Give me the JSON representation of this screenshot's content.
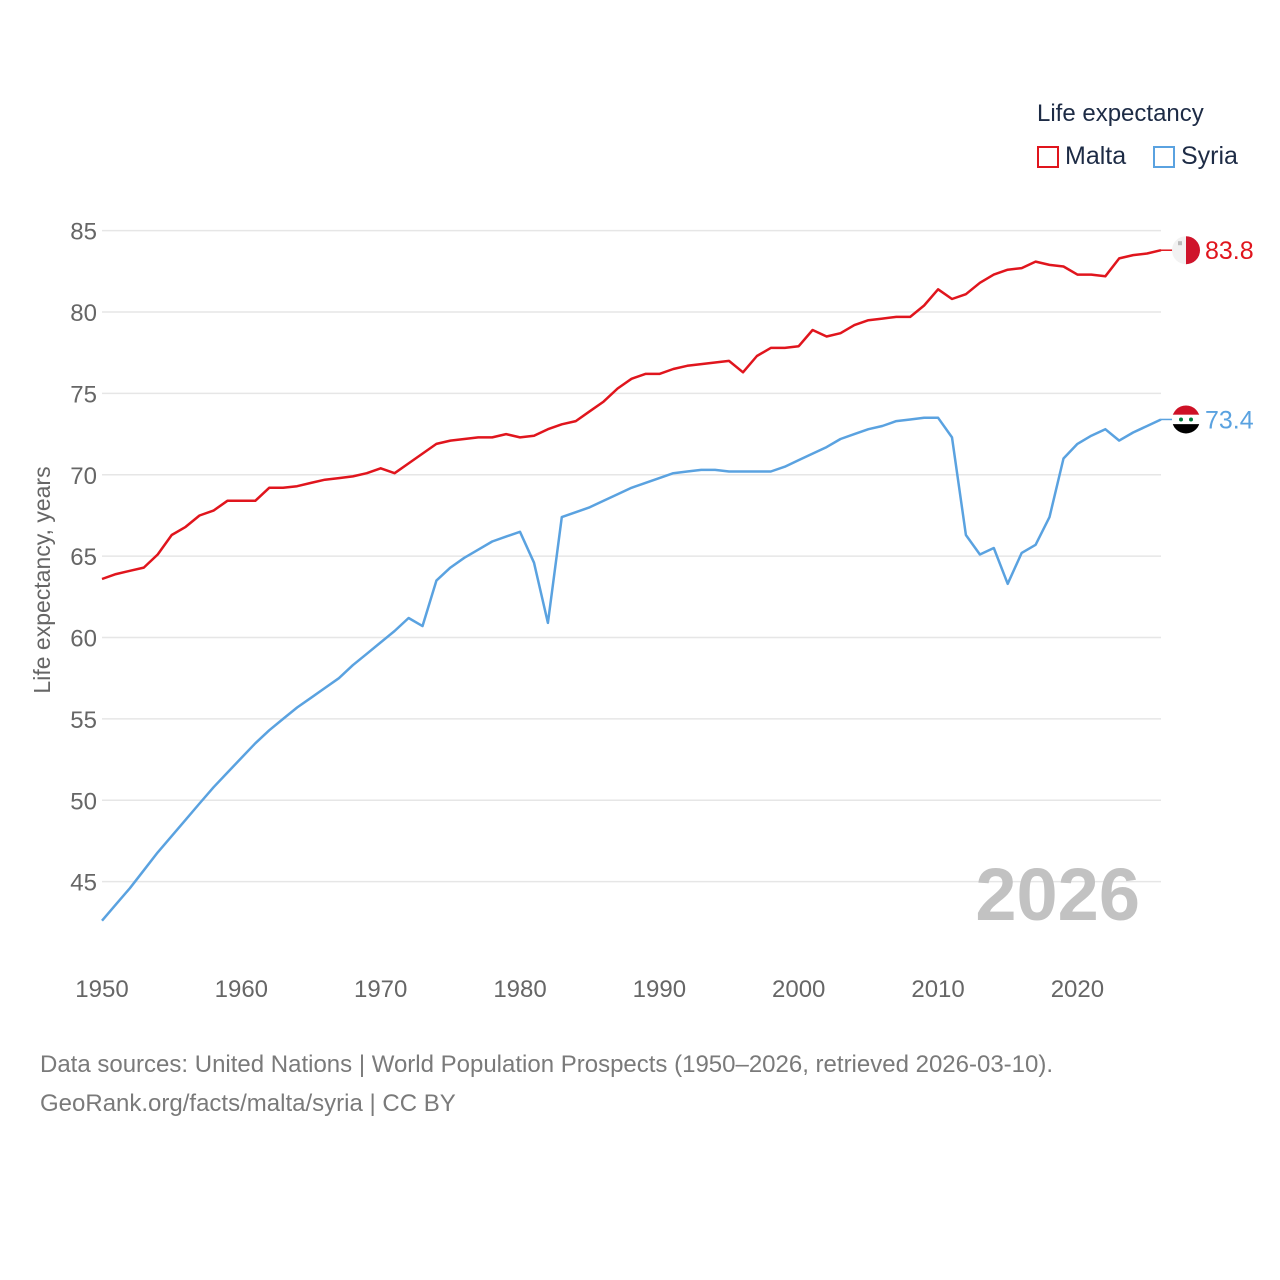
{
  "chart_data": {
    "type": "line",
    "title": "Life expectancy",
    "ylabel": "Life expectancy, years",
    "xlabel": "",
    "xlim": [
      1950,
      2026
    ],
    "ylim": [
      40.8,
      87.5
    ],
    "x_ticks": [
      1950,
      1960,
      1970,
      1980,
      1990,
      2000,
      2010,
      2020
    ],
    "y_ticks": [
      45,
      50,
      55,
      60,
      65,
      70,
      75,
      80,
      85
    ],
    "grid": true,
    "year_label": "2026",
    "series": [
      {
        "name": "Malta",
        "color": "#e0151d",
        "end_label": "83.8",
        "x": [
          1950,
          1951,
          1952,
          1953,
          1954,
          1955,
          1956,
          1957,
          1958,
          1959,
          1960,
          1961,
          1962,
          1963,
          1964,
          1965,
          1966,
          1967,
          1968,
          1969,
          1970,
          1971,
          1972,
          1973,
          1974,
          1975,
          1976,
          1977,
          1978,
          1979,
          1980,
          1981,
          1982,
          1983,
          1984,
          1985,
          1986,
          1987,
          1988,
          1989,
          1990,
          1991,
          1992,
          1993,
          1994,
          1995,
          1996,
          1997,
          1998,
          1999,
          2000,
          2001,
          2002,
          2003,
          2004,
          2005,
          2006,
          2007,
          2008,
          2009,
          2010,
          2011,
          2012,
          2013,
          2014,
          2015,
          2016,
          2017,
          2018,
          2019,
          2020,
          2021,
          2022,
          2023,
          2024,
          2025,
          2026
        ],
        "values": [
          63.6,
          63.9,
          64.1,
          64.3,
          65.1,
          66.3,
          66.8,
          67.5,
          67.8,
          68.4,
          68.4,
          68.4,
          69.2,
          69.2,
          69.3,
          69.5,
          69.7,
          69.8,
          69.9,
          70.1,
          70.4,
          70.1,
          70.7,
          71.3,
          71.9,
          72.1,
          72.2,
          72.3,
          72.3,
          72.5,
          72.3,
          72.4,
          72.8,
          73.1,
          73.3,
          73.9,
          74.5,
          75.3,
          75.9,
          76.2,
          76.2,
          76.5,
          76.7,
          76.8,
          76.9,
          77.0,
          76.3,
          77.3,
          77.8,
          77.8,
          77.9,
          78.9,
          78.5,
          78.7,
          79.2,
          79.5,
          79.6,
          79.7,
          79.7,
          80.4,
          81.4,
          80.8,
          81.1,
          81.8,
          82.3,
          82.6,
          82.7,
          83.1,
          82.9,
          82.8,
          82.3,
          82.3,
          82.2,
          83.3,
          83.5,
          83.6,
          83.8
        ]
      },
      {
        "name": "Syria",
        "color": "#5aa2e0",
        "end_label": "73.4",
        "x": [
          1950,
          1951,
          1952,
          1953,
          1954,
          1955,
          1956,
          1957,
          1958,
          1959,
          1960,
          1961,
          1962,
          1963,
          1964,
          1965,
          1966,
          1967,
          1968,
          1969,
          1970,
          1971,
          1972,
          1973,
          1974,
          1975,
          1976,
          1977,
          1978,
          1979,
          1980,
          1981,
          1982,
          1983,
          1984,
          1985,
          1986,
          1987,
          1988,
          1989,
          1990,
          1991,
          1992,
          1993,
          1994,
          1995,
          1996,
          1997,
          1998,
          1999,
          2000,
          2001,
          2002,
          2003,
          2004,
          2005,
          2006,
          2007,
          2008,
          2009,
          2010,
          2011,
          2012,
          2013,
          2014,
          2015,
          2016,
          2017,
          2018,
          2019,
          2020,
          2021,
          2022,
          2023,
          2024,
          2025,
          2026
        ],
        "values": [
          42.6,
          43.6,
          44.6,
          45.7,
          46.8,
          47.8,
          48.8,
          49.8,
          50.8,
          51.7,
          52.6,
          53.5,
          54.3,
          55.0,
          55.7,
          56.3,
          56.9,
          57.5,
          58.3,
          59.0,
          59.7,
          60.4,
          61.2,
          60.7,
          63.5,
          64.3,
          64.9,
          65.4,
          65.9,
          66.2,
          66.5,
          64.6,
          60.9,
          67.4,
          67.7,
          68.0,
          68.4,
          68.8,
          69.2,
          69.5,
          69.8,
          70.1,
          70.2,
          70.3,
          70.3,
          70.2,
          70.2,
          70.2,
          70.2,
          70.5,
          70.9,
          71.3,
          71.7,
          72.2,
          72.5,
          72.8,
          73.0,
          73.3,
          73.4,
          73.5,
          73.5,
          72.3,
          66.3,
          65.1,
          65.5,
          63.3,
          65.2,
          65.7,
          67.4,
          71.0,
          71.9,
          72.4,
          72.8,
          72.1,
          72.6,
          73.0,
          73.4
        ]
      }
    ]
  },
  "source": {
    "line1": "Data sources: United Nations | World Population Prospects (1950–2026, retrieved 2026-03-10).",
    "line2": "GeoRank.org/facts/malta/syria | CC BY"
  }
}
